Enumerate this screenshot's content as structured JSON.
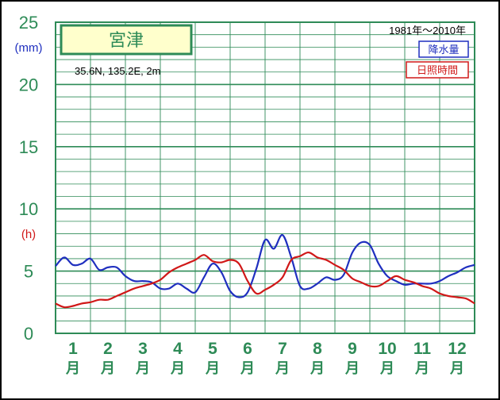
{
  "chart_data": {
    "type": "line",
    "station": "宮津",
    "location": "35.6N, 135.2E, 2m",
    "period": "1981年〜2010年",
    "y_unit_left": "(mm)",
    "y_unit_h": "(h)",
    "ylim": [
      0,
      25
    ],
    "yticks": [
      0,
      5,
      10,
      15,
      20,
      25
    ],
    "x_months": [
      "1",
      "2",
      "3",
      "4",
      "5",
      "6",
      "7",
      "8",
      "9",
      "10",
      "11",
      "12"
    ],
    "x_month_suffix": "月",
    "x_range": [
      0.5,
      12.5
    ],
    "grid": true,
    "series": [
      {
        "name": "降水量",
        "color": "#1f2fbf",
        "x": [
          0.5,
          0.75,
          1.0,
          1.25,
          1.5,
          1.75,
          2.0,
          2.25,
          2.5,
          2.75,
          3.0,
          3.25,
          3.5,
          3.75,
          4.0,
          4.25,
          4.5,
          4.75,
          5.0,
          5.25,
          5.5,
          5.75,
          6.0,
          6.25,
          6.5,
          6.75,
          7.0,
          7.25,
          7.5,
          7.75,
          8.0,
          8.25,
          8.5,
          8.75,
          9.0,
          9.25,
          9.5,
          9.75,
          10.0,
          10.25,
          10.5,
          10.75,
          11.0,
          11.25,
          11.5,
          11.75,
          12.0,
          12.25,
          12.5
        ],
        "values": [
          5.4,
          6.1,
          5.5,
          5.6,
          6.0,
          5.1,
          5.3,
          5.3,
          4.6,
          4.2,
          4.2,
          4.1,
          3.6,
          3.6,
          4.0,
          3.6,
          3.3,
          4.5,
          5.6,
          4.9,
          3.4,
          2.9,
          3.3,
          5.2,
          7.5,
          6.8,
          7.9,
          6.1,
          3.8,
          3.6,
          4.0,
          4.5,
          4.3,
          4.7,
          6.5,
          7.3,
          7.1,
          5.6,
          4.6,
          4.2,
          3.9,
          4.0,
          4.0,
          4.0,
          4.2,
          4.6,
          4.9,
          5.3,
          5.5
        ]
      },
      {
        "name": "日照時間",
        "color": "#d01818",
        "x": [
          0.5,
          0.75,
          1.0,
          1.25,
          1.5,
          1.75,
          2.0,
          2.25,
          2.5,
          2.75,
          3.0,
          3.25,
          3.5,
          3.75,
          4.0,
          4.25,
          4.5,
          4.75,
          5.0,
          5.25,
          5.5,
          5.75,
          6.0,
          6.25,
          6.5,
          6.75,
          7.0,
          7.25,
          7.5,
          7.75,
          8.0,
          8.25,
          8.5,
          8.75,
          9.0,
          9.25,
          9.5,
          9.75,
          10.0,
          10.25,
          10.5,
          10.75,
          11.0,
          11.25,
          11.5,
          11.75,
          12.0,
          12.25,
          12.5
        ],
        "values": [
          2.4,
          2.1,
          2.2,
          2.4,
          2.5,
          2.7,
          2.7,
          3.0,
          3.3,
          3.6,
          3.8,
          4.0,
          4.3,
          4.9,
          5.3,
          5.6,
          5.9,
          6.3,
          5.8,
          5.7,
          5.9,
          5.6,
          4.2,
          3.2,
          3.5,
          3.9,
          4.5,
          5.9,
          6.2,
          6.5,
          6.1,
          5.9,
          5.5,
          5.1,
          4.4,
          4.1,
          3.8,
          3.8,
          4.2,
          4.6,
          4.3,
          4.1,
          3.8,
          3.6,
          3.2,
          3.0,
          2.9,
          2.8,
          2.4
        ]
      }
    ]
  }
}
